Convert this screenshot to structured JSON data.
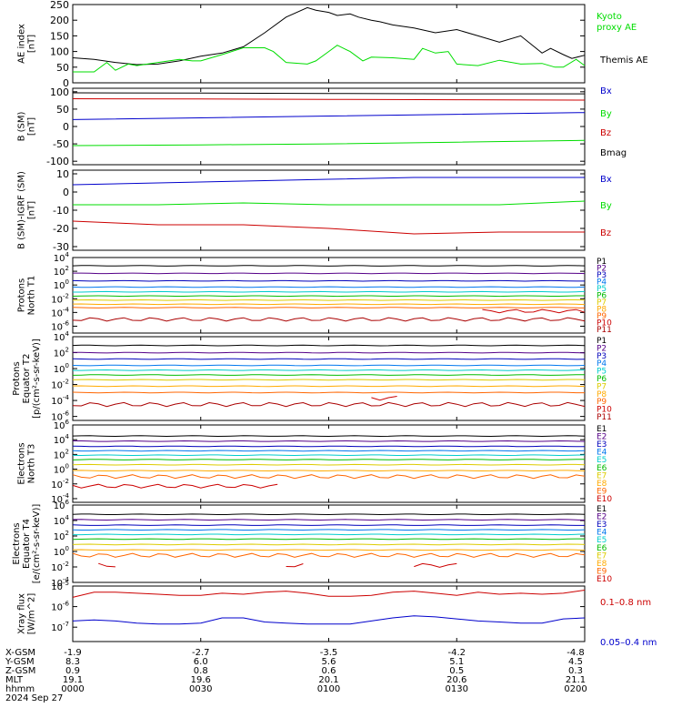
{
  "colors": {
    "black": "#000000",
    "green": "#00dd00",
    "blue": "#0000cc",
    "red": "#cc0000",
    "p": [
      "#000000",
      "#550088",
      "#0000bb",
      "#0077ee",
      "#00cccc",
      "#00bb00",
      "#ddcc00",
      "#ffaa00",
      "#ff6600",
      "#cc0000",
      "#aa0000"
    ],
    "e": [
      "#000000",
      "#550088",
      "#0000bb",
      "#0077ee",
      "#00cccc",
      "#00bb00",
      "#ddcc00",
      "#ffaa00",
      "#ff6600",
      "#cc0000"
    ]
  },
  "footer": {
    "row_labels": [
      "X-GSM",
      "Y-GSM",
      "Z-GSM",
      "MLT",
      "hhmm",
      "2024 Sep 27"
    ],
    "columns": [
      {
        "x": "-1.9",
        "y": "8.3",
        "z": "0.9",
        "mlt": "19.1",
        "hhmm": "0000"
      },
      {
        "x": "-2.7",
        "y": "6.0",
        "z": "0.8",
        "mlt": "19.6",
        "hhmm": "0030"
      },
      {
        "x": "-3.5",
        "y": "5.6",
        "z": "0.6",
        "mlt": "20.1",
        "hhmm": "0100"
      },
      {
        "x": "-4.2",
        "y": "5.1",
        "z": "0.5",
        "mlt": "20.6",
        "hhmm": "0130"
      },
      {
        "x": "-4.8",
        "y": "4.5",
        "z": "0.3",
        "mlt": "21.1",
        "hhmm": "0200"
      }
    ]
  },
  "chart_data": [
    {
      "type": "line",
      "id": "ae",
      "ylabel": [
        "AE index",
        "[nT]"
      ],
      "ylim": [
        0,
        250
      ],
      "yticks": [
        "0",
        "50",
        "100",
        "150",
        "200",
        "250"
      ],
      "legend": [
        {
          "label": "Kyoto",
          "color": "green"
        },
        {
          "label": "proxy AE",
          "color": "green"
        },
        {
          "label": "Themis AE",
          "color": "black"
        }
      ],
      "series": [
        {
          "name": "Themis AE",
          "color": "black",
          "x": [
            0,
            5,
            10,
            15,
            20,
            25,
            30,
            35,
            40,
            45,
            50,
            55,
            57,
            60,
            62,
            65,
            67,
            70,
            72,
            75,
            80,
            85,
            90,
            95,
            100,
            105,
            110,
            112,
            115,
            117,
            120
          ],
          "y": [
            80,
            75,
            65,
            58,
            60,
            70,
            85,
            95,
            115,
            160,
            210,
            240,
            232,
            225,
            215,
            220,
            210,
            200,
            195,
            185,
            175,
            160,
            170,
            150,
            130,
            150,
            95,
            110,
            90,
            78,
            88
          ]
        },
        {
          "name": "Kyoto proxy AE",
          "color": "green",
          "x": [
            0,
            5,
            8,
            10,
            13,
            15,
            20,
            25,
            28,
            30,
            35,
            40,
            45,
            47,
            50,
            55,
            57,
            60,
            62,
            65,
            68,
            70,
            75,
            80,
            82,
            85,
            88,
            90,
            95,
            100,
            105,
            110,
            113,
            115,
            118,
            120
          ],
          "y": [
            35,
            35,
            65,
            40,
            60,
            55,
            65,
            75,
            70,
            70,
            90,
            112,
            112,
            100,
            65,
            60,
            70,
            100,
            120,
            100,
            70,
            82,
            80,
            75,
            110,
            95,
            100,
            60,
            55,
            72,
            60,
            62,
            50,
            50,
            75,
            55
          ]
        }
      ]
    },
    {
      "type": "line",
      "id": "bsm",
      "ylabel": [
        "B (SM)",
        "[nT]"
      ],
      "ylim": [
        -110,
        110
      ],
      "yticks": [
        "-100",
        "-50",
        "0",
        "50",
        "100"
      ],
      "legend": [
        {
          "label": "Bx",
          "color": "blue"
        },
        {
          "label": "By",
          "color": "green"
        },
        {
          "label": "Bz",
          "color": "red"
        },
        {
          "label": "Bmag",
          "color": "black"
        }
      ],
      "series": [
        {
          "name": "Bmag",
          "color": "black",
          "x": [
            0,
            30,
            60,
            90,
            120
          ],
          "y": [
            97,
            96,
            95,
            94,
            94
          ]
        },
        {
          "name": "Bz",
          "color": "red",
          "x": [
            0,
            30,
            60,
            90,
            120
          ],
          "y": [
            80,
            79,
            78,
            77,
            76
          ]
        },
        {
          "name": "Bx",
          "color": "blue",
          "x": [
            0,
            30,
            60,
            90,
            120
          ],
          "y": [
            20,
            25,
            30,
            35,
            40
          ]
        },
        {
          "name": "By",
          "color": "green",
          "x": [
            0,
            30,
            60,
            90,
            120
          ],
          "y": [
            -55,
            -53,
            -50,
            -45,
            -40
          ]
        }
      ]
    },
    {
      "type": "line",
      "id": "bigrf",
      "ylabel": [
        "B (SM)-IGRF (SM)",
        "[nT]"
      ],
      "ylim": [
        -32,
        12
      ],
      "yticks": [
        "-30",
        "-20",
        "-10",
        "0",
        "10"
      ],
      "legend": [
        {
          "label": "Bx",
          "color": "blue"
        },
        {
          "label": "By",
          "color": "green"
        },
        {
          "label": "Bz",
          "color": "red"
        }
      ],
      "series": [
        {
          "name": "Bx",
          "color": "blue",
          "x": [
            0,
            20,
            40,
            60,
            80,
            100,
            120
          ],
          "y": [
            4,
            5,
            6,
            7,
            8,
            8,
            8
          ]
        },
        {
          "name": "By",
          "color": "green",
          "x": [
            0,
            20,
            40,
            60,
            80,
            100,
            120
          ],
          "y": [
            -7,
            -7,
            -6,
            -7,
            -7,
            -7,
            -5
          ]
        },
        {
          "name": "Bz",
          "color": "red",
          "x": [
            0,
            10,
            20,
            30,
            40,
            60,
            80,
            100,
            120
          ],
          "y": [
            -16,
            -17,
            -18,
            -18,
            -18,
            -20,
            -23,
            -22,
            -22
          ]
        }
      ]
    },
    {
      "type": "line",
      "id": "pn",
      "ylabel": [
        "Protons",
        "North T1"
      ],
      "ylog": true,
      "ylim": [
        -7,
        4
      ],
      "yticks": [
        {
          "m": "10",
          "e": "4"
        },
        {
          "m": "10",
          "e": "2"
        },
        {
          "m": "10",
          "e": "0"
        },
        {
          "m": "10",
          "e": "-2"
        },
        {
          "m": "10",
          "e": "-4"
        },
        {
          "m": "10",
          "e": "-6"
        }
      ],
      "legend": [
        "P1",
        "P2",
        "P3",
        "P4",
        "P5",
        "P6",
        "P7",
        "P8",
        "P9",
        "P10",
        "P11"
      ],
      "channels": [
        2.8,
        1.7,
        0.6,
        -0.3,
        -1.0,
        -1.6,
        -2.2,
        -2.8,
        -3.3,
        -3.8,
        -5.0
      ],
      "gaps": {
        "9": [
          [
            0,
            95
          ]
        ]
      }
    },
    {
      "type": "line",
      "id": "pe",
      "ylabel": [
        "Protons",
        "Equator T2",
        "[p/(cm²-s-sr-keV)]"
      ],
      "ylog": true,
      "ylim": [
        -6.5,
        4
      ],
      "yticks": [
        {
          "m": "10",
          "e": "4"
        },
        {
          "m": "10",
          "e": "2"
        },
        {
          "m": "10",
          "e": "0"
        },
        {
          "m": "10",
          "e": "-2"
        },
        {
          "m": "10",
          "e": "-4"
        },
        {
          "m": "10",
          "e": "-6"
        }
      ],
      "legend": [
        "P1",
        "P2",
        "P3",
        "P4",
        "P5",
        "P6",
        "P7",
        "P8",
        "P9",
        "P10",
        "P11"
      ],
      "channels": [
        2.9,
        2.0,
        1.2,
        0.4,
        -0.2,
        -0.8,
        -1.4,
        -2.2,
        -3.0,
        -3.7,
        -4.5
      ],
      "gaps": {
        "9": [
          [
            0,
            68
          ],
          [
            78,
            120
          ]
        ]
      }
    },
    {
      "type": "line",
      "id": "en",
      "ylabel": [
        "Electrons",
        "North T3"
      ],
      "ylog": true,
      "ylim": [
        -4.5,
        6
      ],
      "yticks": [
        {
          "m": "10",
          "e": "6"
        },
        {
          "m": "10",
          "e": "4"
        },
        {
          "m": "10",
          "e": "2"
        },
        {
          "m": "10",
          "e": "0"
        },
        {
          "m": "10",
          "e": "-2"
        },
        {
          "m": "10",
          "e": "-4"
        }
      ],
      "legend": [
        "E1",
        "E2",
        "E3",
        "E4",
        "E5",
        "E6",
        "E7",
        "E8",
        "E9",
        "E10"
      ],
      "channels": [
        4.5,
        3.8,
        3.1,
        2.5,
        1.9,
        1.3,
        0.6,
        -0.2,
        -1.0,
        -2.3
      ],
      "gaps": {
        "9": [
          [
            50,
            120
          ]
        ]
      }
    },
    {
      "type": "line",
      "id": "ee",
      "ylabel": [
        "Electrons",
        "Equator T4",
        "[e/(cm²-s-sr-keV)]"
      ],
      "ylog": true,
      "ylim": [
        -4,
        6
      ],
      "yticks": [
        {
          "m": "10",
          "e": "6"
        },
        {
          "m": "10",
          "e": "4"
        },
        {
          "m": "10",
          "e": "2"
        },
        {
          "m": "10",
          "e": "0"
        },
        {
          "m": "10",
          "e": "-2"
        },
        {
          "m": "10",
          "e": "-4"
        }
      ],
      "legend": [
        "E1",
        "E2",
        "E3",
        "E4",
        "E5",
        "E6",
        "E7",
        "E8",
        "E9",
        "E10"
      ],
      "channels": [
        4.8,
        4.1,
        3.4,
        2.8,
        2.2,
        1.6,
        0.9,
        0.2,
        -0.5,
        -1.8
      ],
      "gaps": {
        "9": [
          [
            0,
            5
          ],
          [
            12,
            48
          ],
          [
            55,
            68
          ],
          [
            72,
            78
          ],
          [
            92,
            118
          ]
        ]
      }
    },
    {
      "type": "line",
      "id": "xray",
      "ylabel": [
        "Xray flux",
        "[W/m^2]"
      ],
      "ylog": true,
      "ylim": [
        -7.7,
        -5.0
      ],
      "yticks": [
        {
          "m": "10",
          "e": "-5"
        },
        {
          "m": "10",
          "e": "-6"
        },
        {
          "m": "10",
          "e": "-7"
        }
      ],
      "legend": [
        {
          "label": "0.1–0.8 nm",
          "color": "red"
        },
        {
          "label": "0.05–0.4 nm",
          "color": "blue"
        }
      ],
      "series": [
        {
          "name": "0.1–0.8 nm",
          "color": "red",
          "x": [
            0,
            5,
            10,
            15,
            20,
            25,
            30,
            35,
            40,
            45,
            50,
            55,
            60,
            65,
            70,
            75,
            80,
            85,
            90,
            95,
            100,
            105,
            110,
            115,
            120
          ],
          "y": [
            -5.55,
            -5.3,
            -5.3,
            -5.35,
            -5.4,
            -5.45,
            -5.45,
            -5.35,
            -5.4,
            -5.3,
            -5.25,
            -5.35,
            -5.5,
            -5.5,
            -5.45,
            -5.3,
            -5.25,
            -5.35,
            -5.45,
            -5.3,
            -5.4,
            -5.35,
            -5.4,
            -5.35,
            -5.2
          ]
        },
        {
          "name": "0.05–0.4 nm",
          "color": "blue",
          "x": [
            0,
            5,
            10,
            15,
            20,
            25,
            30,
            35,
            40,
            45,
            50,
            55,
            60,
            65,
            70,
            75,
            80,
            85,
            90,
            95,
            100,
            105,
            110,
            115,
            120
          ],
          "y": [
            -6.7,
            -6.65,
            -6.7,
            -6.8,
            -6.85,
            -6.85,
            -6.8,
            -6.55,
            -6.55,
            -6.75,
            -6.8,
            -6.85,
            -6.85,
            -6.85,
            -6.7,
            -6.55,
            -6.45,
            -6.5,
            -6.6,
            -6.7,
            -6.75,
            -6.8,
            -6.8,
            -6.6,
            -6.55
          ]
        }
      ]
    }
  ]
}
